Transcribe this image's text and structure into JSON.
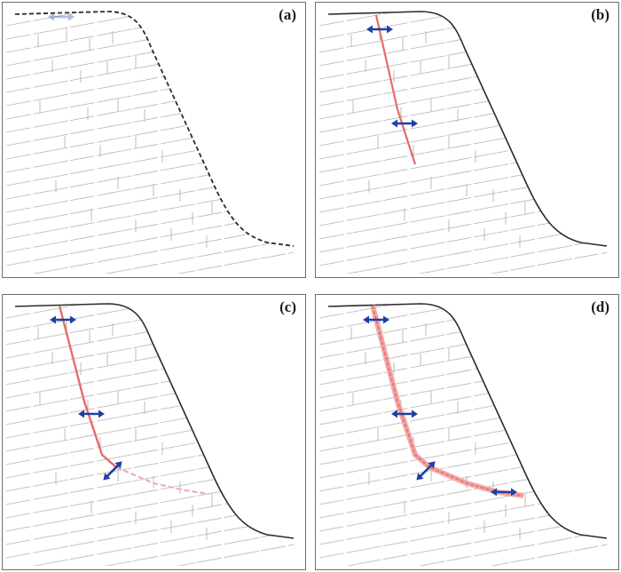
{
  "panels": [
    {
      "id": "a",
      "label": "(a)",
      "profile": "dashed",
      "crack_stage": 0
    },
    {
      "id": "b",
      "label": "(b)",
      "profile": "solid",
      "crack_stage": 1
    },
    {
      "id": "c",
      "label": "(c)",
      "profile": "solid",
      "crack_stage": 2
    },
    {
      "id": "d",
      "label": "(d)",
      "profile": "solid",
      "crack_stage": 3
    }
  ],
  "colors": {
    "slope_profile": "#2b2b2b",
    "joints": "#b5b5b5",
    "crack": "#e86a6a",
    "crack_light": "#f2a8a8",
    "arrows": "#1f3fa6",
    "frame": "#6e6e6e"
  }
}
